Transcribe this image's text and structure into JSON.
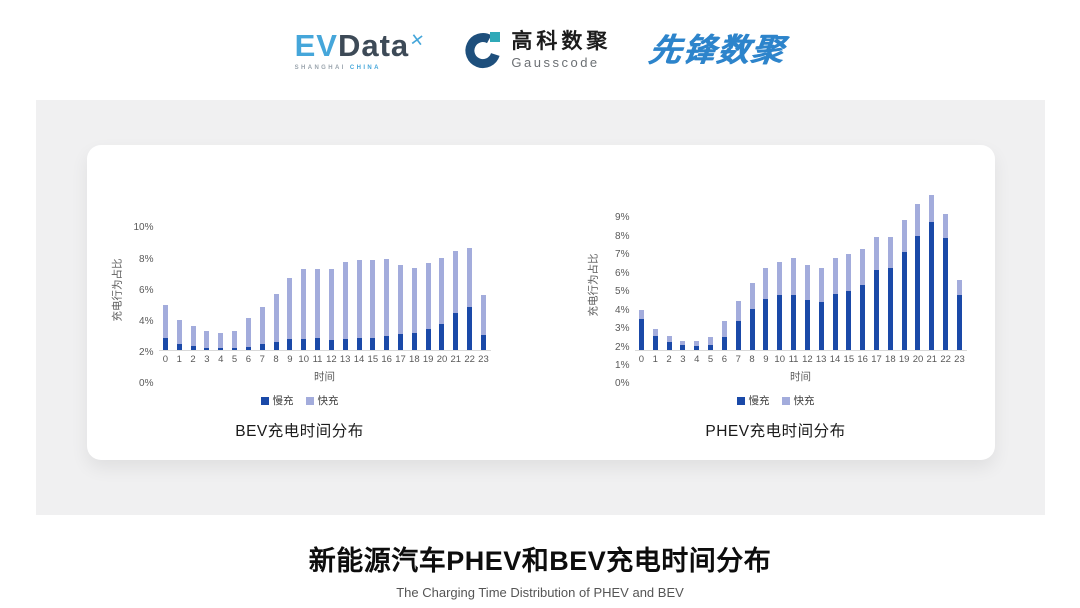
{
  "header": {
    "evdata": {
      "ev": "EV",
      "data": "Data",
      "mark": "✕",
      "sub1": "SHANGHAI",
      "sub2": "CHINA"
    },
    "gausscode": {
      "cn": "高科数聚",
      "en": "Gausscode"
    },
    "xianfeng": "先锋数聚"
  },
  "footer": {
    "title": "新能源汽车PHEV和BEV充电时间分布",
    "subtitle": "The Charging Time Distribution of PHEV and BEV"
  },
  "colors": {
    "slow": "#1a49a8",
    "fast": "#a3acdc",
    "axis_text": "#595959",
    "band_bg": "#f0f0f1"
  },
  "chart_data": [
    {
      "id": "bev",
      "type": "bar",
      "stacked": true,
      "title": "BEV充电时间分布",
      "ylabel": "充电行为占比",
      "xlabel": "时间",
      "ylim": [
        0,
        10
      ],
      "ymax": 10,
      "yticks": [
        "0%",
        "2%",
        "4%",
        "6%",
        "8%",
        "10%"
      ],
      "grid": false,
      "legend_position": "bottom",
      "categories": [
        "0",
        "1",
        "2",
        "3",
        "4",
        "5",
        "6",
        "7",
        "8",
        "9",
        "10",
        "11",
        "12",
        "13",
        "14",
        "15",
        "16",
        "17",
        "18",
        "19",
        "20",
        "21",
        "22",
        "23"
      ],
      "series": [
        {
          "name": "慢充",
          "color": "#1a49a8",
          "values": [
            0.8,
            0.4,
            0.25,
            0.15,
            0.12,
            0.1,
            0.2,
            0.4,
            0.5,
            0.7,
            0.7,
            0.75,
            0.65,
            0.7,
            0.75,
            0.75,
            0.9,
            1.05,
            1.1,
            1.35,
            1.7,
            2.4,
            2.8,
            1.0
          ]
        },
        {
          "name": "快充",
          "color": "#a3acdc",
          "values": [
            2.1,
            1.55,
            1.3,
            1.05,
            1.0,
            1.1,
            1.85,
            2.4,
            3.1,
            3.95,
            4.5,
            4.5,
            4.6,
            4.95,
            5.05,
            5.05,
            4.95,
            4.45,
            4.2,
            4.25,
            4.25,
            4.0,
            3.75,
            2.55
          ]
        }
      ]
    },
    {
      "id": "phev",
      "type": "bar",
      "stacked": true,
      "title": "PHEV充电时间分布",
      "ylabel": "充电行为占比",
      "xlabel": "时间",
      "ylim": [
        0,
        9
      ],
      "ymax": 9,
      "yticks": [
        "0%",
        "1%",
        "2%",
        "3%",
        "4%",
        "5%",
        "6%",
        "7%",
        "8%",
        "9%"
      ],
      "grid": false,
      "legend_position": "bottom",
      "categories": [
        "0",
        "1",
        "2",
        "3",
        "4",
        "5",
        "6",
        "7",
        "8",
        "9",
        "10",
        "11",
        "12",
        "13",
        "14",
        "15",
        "16",
        "17",
        "18",
        "19",
        "20",
        "21",
        "22",
        "23"
      ],
      "series": [
        {
          "name": "慢充",
          "color": "#1a49a8",
          "values": [
            1.7,
            0.75,
            0.45,
            0.25,
            0.2,
            0.3,
            0.7,
            1.6,
            2.25,
            2.8,
            3.0,
            3.0,
            2.75,
            2.6,
            3.05,
            3.2,
            3.55,
            4.35,
            4.5,
            5.35,
            6.2,
            7.0,
            6.1,
            3.0
          ]
        },
        {
          "name": "快充",
          "color": "#a3acdc",
          "values": [
            0.5,
            0.4,
            0.3,
            0.25,
            0.3,
            0.4,
            0.9,
            1.1,
            1.4,
            1.7,
            1.8,
            2.0,
            1.9,
            1.85,
            1.95,
            2.05,
            1.95,
            1.8,
            1.65,
            1.75,
            1.75,
            1.45,
            1.3,
            0.8
          ]
        }
      ]
    }
  ]
}
